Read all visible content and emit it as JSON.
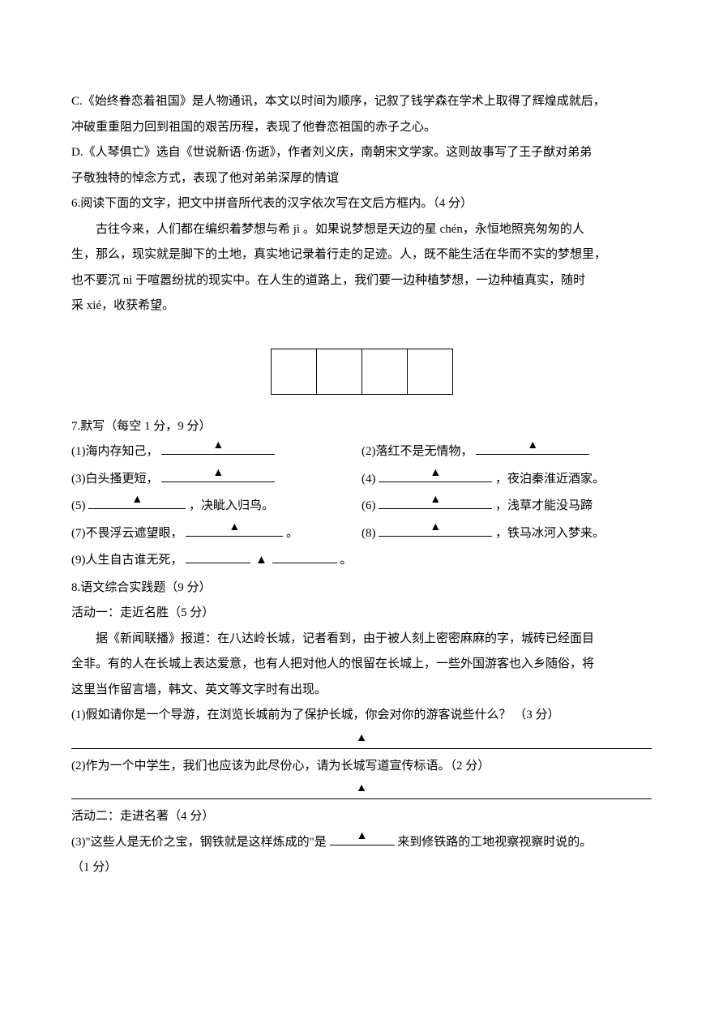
{
  "optC": {
    "label": "C.",
    "line1": "《始终眷恋着祖国》是人物通讯，本文以时间为顺序，记叙了钱学森在学术上取得了辉煌成就后，",
    "line2": "冲破重重阻力回到祖国的艰苦历程，表现了他眷恋祖国的赤子之心。"
  },
  "optD": {
    "label": "D.",
    "line1": "《人琴俱亡》选自《世说新语·伤逝》，作者刘义庆，南朝宋文学家。这则故事写了王子猷对弟弟",
    "line2": "子敬独特的悼念方式，表现了他对弟弟深厚的情谊"
  },
  "q6": {
    "prompt": "6.阅读下面的文字，把文中拼音所代表的汉字依次写在文后方框内。（4 分）",
    "body1": "古往今来，人们都在编织着梦想与希 jì 。如果说梦想是天边的星 chén，永恒地照亮匆匆的人",
    "body2": "生，那么，现实就是脚下的土地，真实地记录着行走的足迹。人，既不能生活在华而不实的梦想里，",
    "body3": "也不要沉 nì 于喧嚣纷扰的现实中。在人生的道路上，我们要一边种植梦想，一边种植真实，随时",
    "body4": "采 xié，收获希望。"
  },
  "q7": {
    "prompt": "7.默写（每空 1 分，9 分）",
    "items": {
      "1": "(1)海内存知己，",
      "2a": "(2)落红不是无情物，",
      "3": "(3)白头搔更短，",
      "4b": "，夜泊秦淮近酒家。",
      "5b": "，决眦入归鸟。",
      "5a": "(5)",
      "4a": "(4)",
      "6a": "(6)",
      "6b": "，浅草才能没马蹄",
      "7a": "(7)不畏浮云遮望眼，",
      "7b": "。",
      "8a": "(8)",
      "8b": "，铁马冰河入梦来。",
      "9a": "(9)人生自古谁无死，",
      "9b": "。"
    }
  },
  "q8": {
    "prompt": "8.语文综合实践题（9 分）",
    "act1": "活动一：走近名胜（5 分）",
    "body1": "据《新闻联播》报道：在八达岭长城，记者看到，由于被人刻上密密麻麻的字，城砖已经面目",
    "body2": "全非。有的人在长城上表达爱意，也有人把对他人的恨留在长城上，一些外国游客也入乡随俗，将",
    "body3": "这里当作留言墙，韩文、英文等文字时有出现。",
    "sub1": "(1)假如请你是一个导游，在浏览长城前为了保护长城，你会对你的游客说些什么？ （3 分）",
    "sub2": "(2)作为一个中学生，我们也应该为此尽份心，请为长城写道宣传标语。（2 分）",
    "act2": "活动二：走进名著（4 分）",
    "sub3a": "(3)\"这些人是无价之宝，钢铁就是这样炼成的\"是",
    "sub3b": "来到修铁路的工地视察视察时说的。",
    "sub3c": "（1 分）"
  },
  "marker": "▲"
}
